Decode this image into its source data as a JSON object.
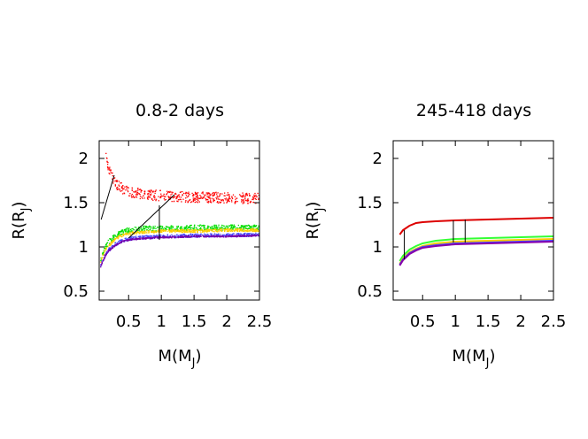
{
  "chart_data": [
    {
      "type": "scatter",
      "title": "0.8-2 days",
      "xlabel": "M(M",
      "xlabel_sub": "J",
      "xlabel_end": ")",
      "ylabel": "R(R",
      "ylabel_sub": "J",
      "ylabel_end": ")",
      "xlim": [
        0.05,
        2.5
      ],
      "ylim": [
        0.4,
        2.2
      ],
      "xticks": [
        0.5,
        1,
        1.5,
        2,
        2.5
      ],
      "xtick_labels": [
        "0.5",
        "1",
        "1.5",
        "2",
        "2.5"
      ],
      "yticks": [
        0.5,
        1,
        1.5,
        2
      ],
      "ytick_labels": [
        "0.5",
        "1",
        "1.5",
        "2"
      ],
      "grid": false,
      "series": [
        {
          "color": "#ff0000",
          "style": "dots",
          "x": [
            0.15,
            0.18,
            0.2,
            0.25,
            0.3,
            0.4,
            0.5,
            0.6,
            0.8,
            1.0,
            1.2,
            1.5,
            1.8,
            2.1,
            2.5
          ],
          "y": [
            2.08,
            1.95,
            1.88,
            1.78,
            1.72,
            1.66,
            1.63,
            1.61,
            1.59,
            1.58,
            1.57,
            1.56,
            1.56,
            1.55,
            1.55
          ],
          "spread": 0.06
        },
        {
          "color": "#00dd00",
          "style": "dots",
          "x": [
            0.07,
            0.1,
            0.15,
            0.2,
            0.3,
            0.4,
            0.5,
            0.6,
            0.8,
            1.0,
            1.2,
            1.5,
            2.0,
            2.5
          ],
          "y": [
            0.86,
            0.92,
            1.0,
            1.06,
            1.13,
            1.17,
            1.19,
            1.2,
            1.21,
            1.21,
            1.21,
            1.22,
            1.22,
            1.22
          ],
          "spread": 0.03
        },
        {
          "color": "#ffcc00",
          "style": "dots",
          "x": [
            0.07,
            0.1,
            0.15,
            0.2,
            0.3,
            0.4,
            0.5,
            0.6,
            0.8,
            1.0,
            1.2,
            1.5,
            2.0,
            2.5
          ],
          "y": [
            0.83,
            0.89,
            0.97,
            1.02,
            1.09,
            1.13,
            1.15,
            1.16,
            1.17,
            1.18,
            1.18,
            1.18,
            1.19,
            1.19
          ],
          "spread": 0.015
        },
        {
          "color": "#4444ff",
          "style": "dots",
          "x": [
            0.07,
            0.1,
            0.15,
            0.2,
            0.3,
            0.4,
            0.5,
            0.6,
            0.8,
            1.0,
            1.2,
            1.5,
            2.0,
            2.5
          ],
          "y": [
            0.78,
            0.84,
            0.92,
            0.97,
            1.03,
            1.07,
            1.09,
            1.1,
            1.11,
            1.12,
            1.12,
            1.13,
            1.13,
            1.14
          ],
          "spread": 0.02
        },
        {
          "color": "#7700aa",
          "style": "dots",
          "x": [
            0.07,
            0.1,
            0.15,
            0.2,
            0.3,
            0.4,
            0.5,
            0.6,
            0.8,
            1.0,
            1.2,
            1.5,
            2.0,
            2.5
          ],
          "y": [
            0.77,
            0.83,
            0.91,
            0.96,
            1.02,
            1.06,
            1.08,
            1.09,
            1.1,
            1.11,
            1.11,
            1.12,
            1.12,
            1.13
          ],
          "spread": 0.008
        }
      ],
      "annotation_lines": [
        {
          "color": "#000000",
          "x": [
            0.08,
            0.28
          ],
          "y": [
            1.31,
            1.81
          ]
        },
        {
          "color": "#000000",
          "x": [
            0.5,
            1.2
          ],
          "y": [
            1.1,
            1.59
          ]
        },
        {
          "color": "#000000",
          "x": [
            0.97,
            0.97
          ],
          "y": [
            1.08,
            1.47
          ]
        }
      ]
    },
    {
      "type": "line",
      "title": "245-418 days",
      "xlabel": "M(M",
      "xlabel_sub": "J",
      "xlabel_end": ")",
      "ylabel": "R(R",
      "ylabel_sub": "J",
      "ylabel_end": ")",
      "xlim": [
        0.05,
        2.5
      ],
      "ylim": [
        0.4,
        2.2
      ],
      "xticks": [
        0.5,
        1,
        1.5,
        2,
        2.5
      ],
      "xtick_labels": [
        "0.5",
        "1",
        "1.5",
        "2",
        "2.5"
      ],
      "yticks": [
        0.5,
        1,
        1.5,
        2
      ],
      "ytick_labels": [
        "0.5",
        "1",
        "1.5",
        "2"
      ],
      "grid": false,
      "series": [
        {
          "color": "#dd0000",
          "style": "line",
          "x": [
            0.15,
            0.2,
            0.3,
            0.4,
            0.5,
            0.7,
            1.0,
            1.5,
            2.0,
            2.5
          ],
          "y": [
            1.14,
            1.19,
            1.24,
            1.27,
            1.28,
            1.29,
            1.3,
            1.31,
            1.32,
            1.33
          ]
        },
        {
          "color": "#33ff33",
          "style": "line",
          "x": [
            0.15,
            0.2,
            0.3,
            0.4,
            0.5,
            0.7,
            1.0,
            1.5,
            2.0,
            2.5
          ],
          "y": [
            0.84,
            0.9,
            0.97,
            1.01,
            1.04,
            1.07,
            1.09,
            1.1,
            1.11,
            1.12
          ]
        },
        {
          "color": "#ffcc00",
          "style": "line",
          "x": [
            0.15,
            0.2,
            0.3,
            0.4,
            0.5,
            0.7,
            1.0,
            1.5,
            2.0,
            2.5
          ],
          "y": [
            0.81,
            0.87,
            0.94,
            0.98,
            1.01,
            1.04,
            1.06,
            1.07,
            1.08,
            1.09
          ]
        },
        {
          "color": "#4444ff",
          "style": "line",
          "x": [
            0.15,
            0.2,
            0.3,
            0.4,
            0.5,
            0.7,
            1.0,
            1.5,
            2.0,
            2.5
          ],
          "y": [
            0.8,
            0.86,
            0.93,
            0.97,
            1.0,
            1.02,
            1.04,
            1.05,
            1.06,
            1.07
          ]
        },
        {
          "color": "#8800aa",
          "style": "line",
          "x": [
            0.15,
            0.2,
            0.3,
            0.4,
            0.5,
            0.7,
            1.0,
            1.5,
            2.0,
            2.5
          ],
          "y": [
            0.79,
            0.85,
            0.92,
            0.96,
            0.99,
            1.01,
            1.03,
            1.04,
            1.05,
            1.06
          ]
        }
      ],
      "annotation_lines": [
        {
          "color": "#000000",
          "x": [
            0.22,
            0.22
          ],
          "y": [
            0.86,
            1.19
          ]
        },
        {
          "color": "#000000",
          "x": [
            0.97,
            0.97
          ],
          "y": [
            1.05,
            1.3
          ]
        },
        {
          "color": "#000000",
          "x": [
            1.15,
            1.15
          ],
          "y": [
            1.05,
            1.31
          ]
        }
      ]
    }
  ]
}
